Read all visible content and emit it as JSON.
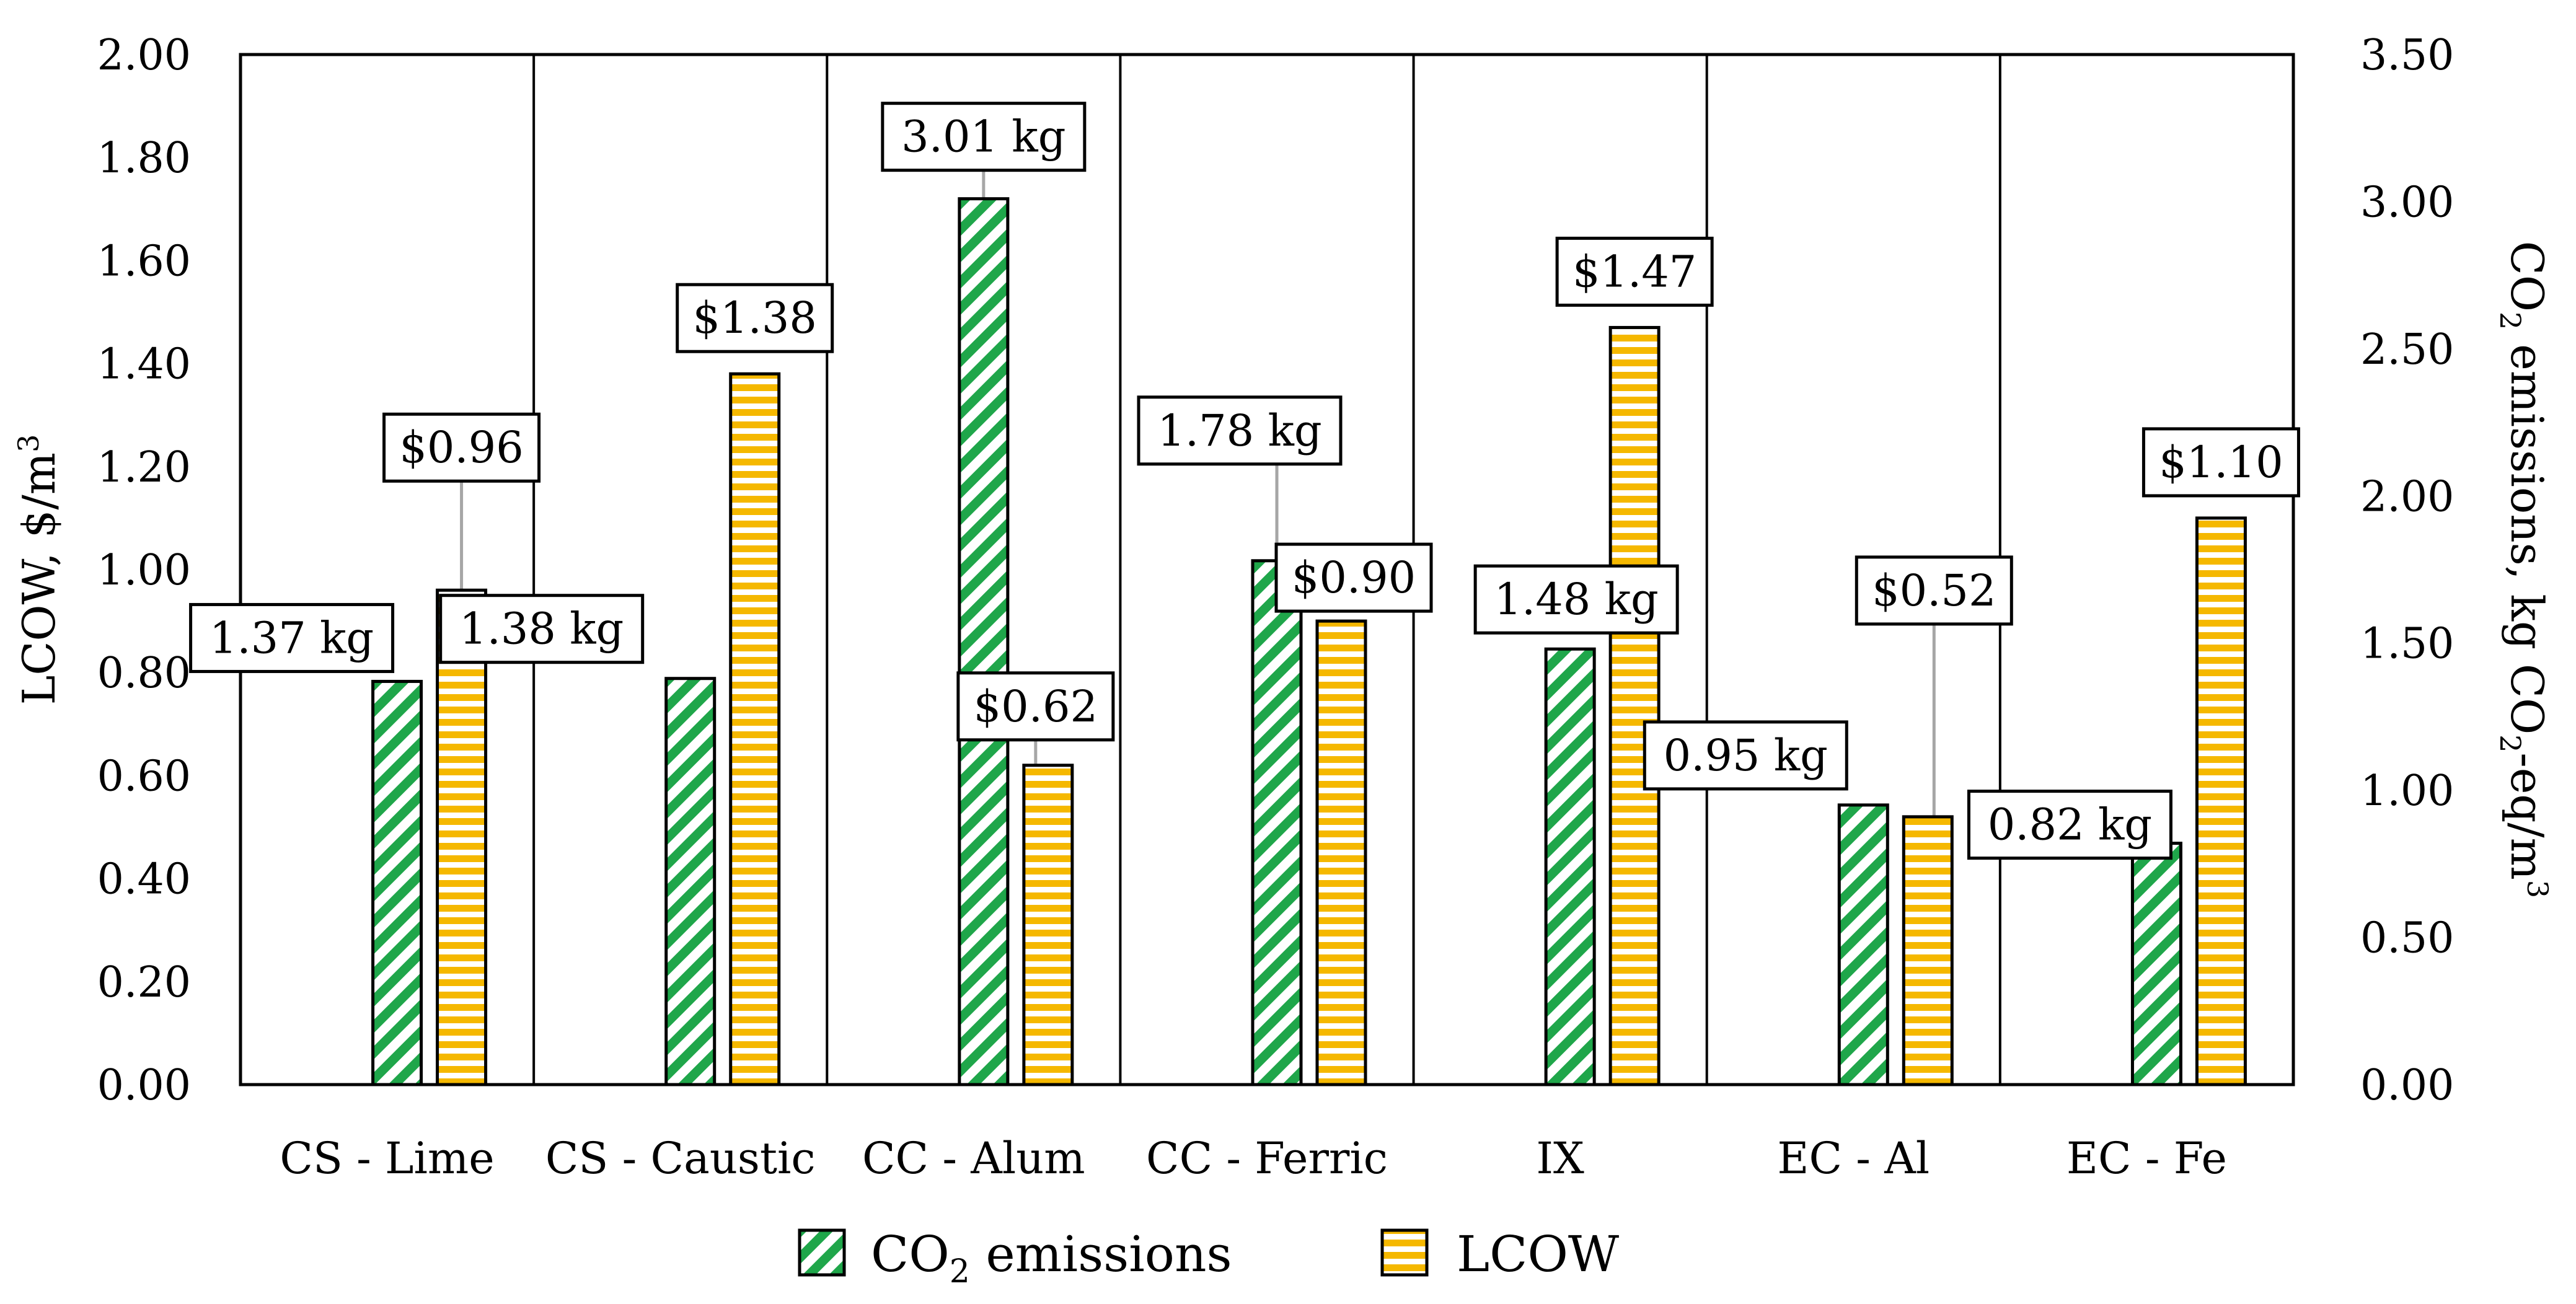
{
  "chart_data": {
    "type": "bar",
    "categories": [
      "CS - Lime",
      "CS - Caustic",
      "CC - Alum",
      "CC - Ferric",
      "IX",
      "EC - Al",
      "EC - Fe"
    ],
    "series": [
      {
        "name": "CO2 emissions",
        "axis": "right",
        "values": [
          1.37,
          1.38,
          3.01,
          1.78,
          1.48,
          0.95,
          0.82
        ],
        "labels": [
          "1.37 kg",
          "1.38 kg",
          "3.01 kg",
          "1.78 kg",
          "1.48 kg",
          "0.95 kg",
          "0.82 kg"
        ],
        "color": "#1fa64a",
        "pattern": "diagonal-hatch"
      },
      {
        "name": "LCOW",
        "axis": "left",
        "values": [
          0.96,
          1.38,
          0.62,
          0.9,
          1.47,
          0.52,
          1.1
        ],
        "labels": [
          "$0.96",
          "$1.38",
          "$0.62",
          "$0.90",
          "$1.47",
          "$0.52",
          "$1.10"
        ],
        "color": "#f5b800",
        "pattern": "horizontal-stripes"
      }
    ],
    "y_left": {
      "label_main": "LCOW, $/m",
      "label_sup": "3",
      "ylim": [
        0,
        2.0
      ],
      "ticks": [
        "0.00",
        "0.20",
        "0.40",
        "0.60",
        "0.80",
        "1.00",
        "1.20",
        "1.40",
        "1.60",
        "1.80",
        "2.00"
      ]
    },
    "y_right": {
      "label_parts": [
        "CO",
        "2",
        " emissions, kg CO",
        "2",
        "-eq/m",
        "3"
      ],
      "ylim": [
        0,
        3.5
      ],
      "ticks": [
        "0.00",
        "0.50",
        "1.00",
        "1.50",
        "2.00",
        "2.50",
        "3.00",
        "3.50"
      ]
    },
    "legend": {
      "position": "bottom-center",
      "co2_parts": [
        "CO",
        "2",
        " emissions"
      ],
      "lcow": "LCOW"
    },
    "grid": false,
    "category_dividers": true
  }
}
